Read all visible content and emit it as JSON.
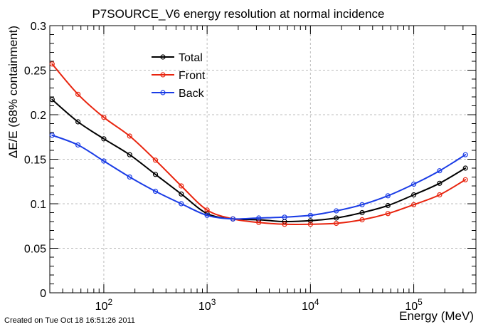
{
  "chart_data": {
    "type": "line",
    "title": "P7SOURCE_V6 energy resolution at normal incidence",
    "xlabel": "Energy (MeV)",
    "ylabel": "ΔE/E (68% containment)",
    "x_scale": "log",
    "xlim": [
      30,
      400000
    ],
    "ylim": [
      0,
      0.3
    ],
    "grid": true,
    "legend_position": "top-left",
    "y_ticks": [
      {
        "value": 0,
        "label": "0"
      },
      {
        "value": 0.05,
        "label": "0.05"
      },
      {
        "value": 0.1,
        "label": "0.1"
      },
      {
        "value": 0.15,
        "label": "0.15"
      },
      {
        "value": 0.2,
        "label": "0.2"
      },
      {
        "value": 0.25,
        "label": "0.25"
      },
      {
        "value": 0.3,
        "label": "0.3"
      }
    ],
    "x_ticks": [
      {
        "value": 100,
        "base": "10",
        "exp": "2"
      },
      {
        "value": 1000,
        "base": "10",
        "exp": "3"
      },
      {
        "value": 10000,
        "base": "10",
        "exp": "4"
      },
      {
        "value": 100000,
        "base": "10",
        "exp": "5"
      }
    ],
    "x": [
      31.6,
      56.2,
      100,
      178,
      316,
      562,
      1000,
      1778,
      3162,
      5623,
      10000,
      17783,
      31623,
      56234,
      100000,
      177828,
      316228
    ],
    "series": [
      {
        "name": "Total",
        "color": "#000000",
        "values": [
          0.217,
          0.192,
          0.173,
          0.155,
          0.133,
          0.111,
          0.089,
          0.083,
          0.082,
          0.08,
          0.081,
          0.084,
          0.09,
          0.098,
          0.11,
          0.123,
          0.14
        ]
      },
      {
        "name": "Front",
        "color": "#e8240e",
        "values": [
          0.257,
          0.223,
          0.197,
          0.176,
          0.149,
          0.12,
          0.093,
          0.083,
          0.079,
          0.077,
          0.077,
          0.078,
          0.082,
          0.089,
          0.099,
          0.11,
          0.127
        ]
      },
      {
        "name": "Back",
        "color": "#1a3ce6",
        "values": [
          0.177,
          0.166,
          0.148,
          0.13,
          0.114,
          0.1,
          0.087,
          0.083,
          0.084,
          0.085,
          0.087,
          0.092,
          0.099,
          0.109,
          0.122,
          0.137,
          0.155
        ]
      }
    ]
  },
  "footer": {
    "created": "Created on Tue Oct 18 16:51:26 2011"
  }
}
